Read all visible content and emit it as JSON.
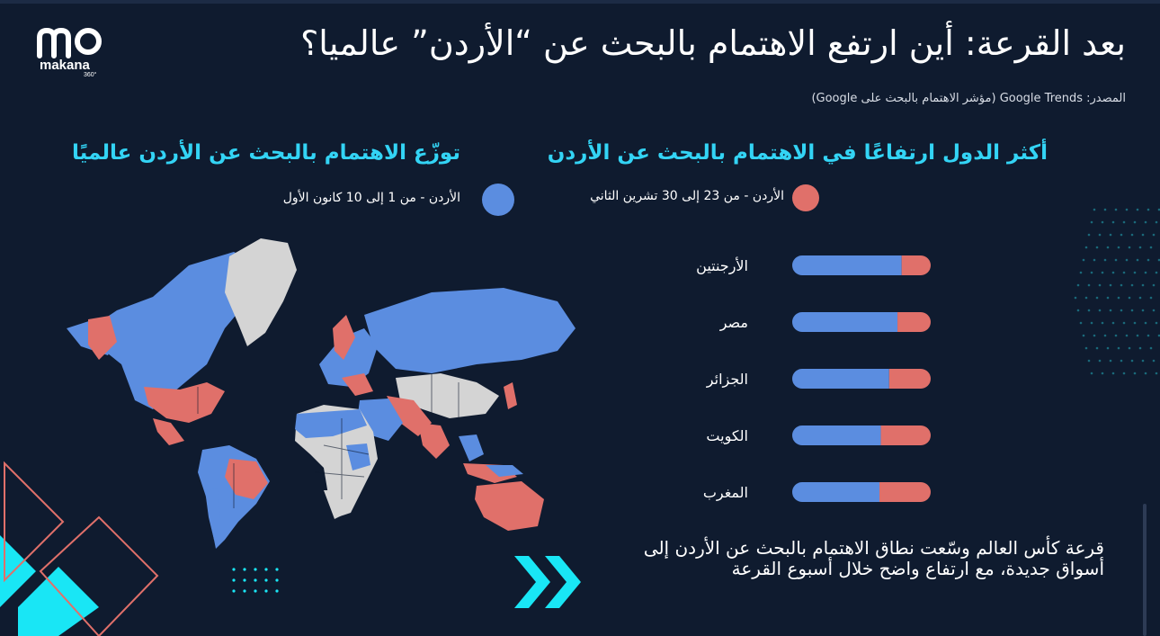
{
  "title": "بعد القرعة: أين ارتفع الاهتمام بالبحث عن “الأردن” عالميا؟",
  "source": "المصدر: Google Trends (مؤشر الاهتمام بالبحث على Google)",
  "logo": {
    "mark": "mo",
    "name": "makana",
    "sub": "360°"
  },
  "left_section": {
    "heading": "توزّع الاهتمام بالبحث عن الأردن عالميًا",
    "legend": "الأردن - من 1 إلى 10 كانون الأول"
  },
  "right_section": {
    "heading": "أكثر الدول ارتفاعًا في الاهتمام بالبحث عن الأردن",
    "legend": "الأردن - من 23 إلى 30 تشرين الثاني"
  },
  "caption": "قرعة كأس العالم وسّعت نطاق الاهتمام بالبحث عن الأردن إلى أسواق جديدة، مع ارتفاع واضح خلال أسبوع القرعة",
  "colors": {
    "blue": "#5b8de0",
    "red": "#e0706a",
    "gray": "#d4d4d4",
    "accent": "#33d4f5",
    "background": "#0f1b2f"
  },
  "icons": [
    "double-chevron-right-icon",
    "world-map-icon"
  ],
  "chart_data": {
    "type": "bar",
    "orientation": "horizontal",
    "stacked": true,
    "categories": [
      "الأرجنتين",
      "مصر",
      "الجزائر",
      "الكويت",
      "المغرب"
    ],
    "series": [
      {
        "name": "الأردن - من 1 إلى 10 كانون الأول",
        "color": "#5b8de0",
        "values": [
          79,
          76,
          70,
          64,
          63
        ]
      },
      {
        "name": "الأردن - من 23 إلى 30 تشرين الثاني",
        "color": "#e0706a",
        "values": [
          21,
          24,
          30,
          36,
          37
        ]
      }
    ],
    "xlim": [
      0,
      100
    ]
  }
}
